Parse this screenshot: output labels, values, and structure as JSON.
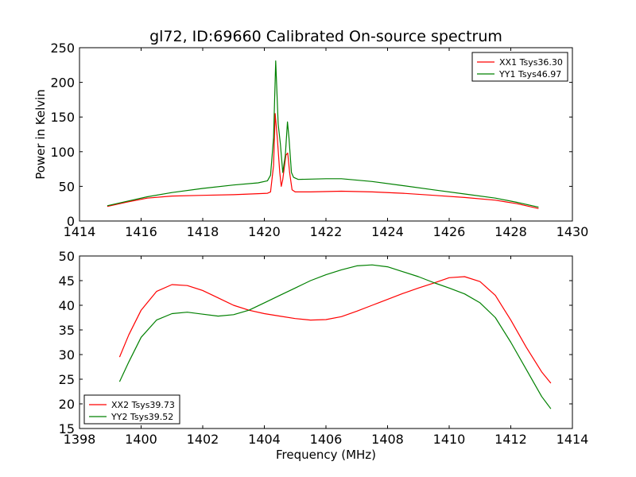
{
  "chart_data": [
    {
      "type": "line",
      "title": "gl72, ID:69660 Calibrated On-source spectrum",
      "xlabel": "",
      "ylabel": "Power in Kelvin",
      "xlim": [
        1414,
        1430
      ],
      "ylim": [
        0,
        250
      ],
      "xticks": [
        1414,
        1416,
        1418,
        1420,
        1422,
        1424,
        1426,
        1428,
        1430
      ],
      "yticks": [
        0,
        50,
        100,
        150,
        200,
        250
      ],
      "legend_position": "top-right",
      "series": [
        {
          "name": "XX1 Tsys36.30",
          "color": "#ff0000",
          "x": [
            1414.9,
            1415.5,
            1416.2,
            1417,
            1418,
            1419,
            1419.8,
            1420.1,
            1420.2,
            1420.3,
            1420.35,
            1420.42,
            1420.5,
            1420.55,
            1420.6,
            1420.7,
            1420.76,
            1420.82,
            1420.9,
            1421.0,
            1421.5,
            1422.5,
            1423.5,
            1424.5,
            1425.5,
            1426.5,
            1427.5,
            1428.2,
            1428.9
          ],
          "y": [
            21,
            27,
            33,
            36,
            37,
            38,
            39.5,
            40,
            42,
            80,
            155,
            120,
            70,
            50,
            60,
            95,
            98,
            70,
            45,
            42,
            42,
            43,
            42,
            40,
            37,
            34,
            30,
            25,
            18
          ]
        },
        {
          "name": "YY1 Tsys46.97",
          "color": "#008000",
          "x": [
            1414.9,
            1415.5,
            1416.2,
            1417,
            1418,
            1419,
            1419.8,
            1420.1,
            1420.2,
            1420.3,
            1420.37,
            1420.45,
            1420.52,
            1420.6,
            1420.68,
            1420.75,
            1420.8,
            1420.88,
            1420.95,
            1421.1,
            1422,
            1422.5,
            1423.5,
            1424.5,
            1425.5,
            1426.5,
            1427.5,
            1428.2,
            1428.9
          ],
          "y": [
            22,
            28,
            35,
            41,
            47,
            52,
            55,
            58,
            66,
            120,
            231,
            140,
            112,
            70,
            95,
            143,
            120,
            70,
            63,
            60,
            61,
            61,
            57,
            51,
            45,
            39,
            33,
            27,
            20
          ]
        }
      ]
    },
    {
      "type": "line",
      "title": "",
      "xlabel": "Frequency (MHz)",
      "ylabel": "",
      "xlim": [
        1398,
        1414
      ],
      "ylim": [
        15,
        50
      ],
      "xticks": [
        1398,
        1400,
        1402,
        1404,
        1406,
        1408,
        1410,
        1412,
        1414
      ],
      "yticks": [
        15,
        20,
        25,
        30,
        35,
        40,
        45,
        50
      ],
      "legend_position": "bottom-left",
      "series": [
        {
          "name": "XX2 Tsys39.73",
          "color": "#ff0000",
          "x": [
            1399.3,
            1399.6,
            1400,
            1400.5,
            1401,
            1401.5,
            1402,
            1402.5,
            1403,
            1403.5,
            1404,
            1404.5,
            1405,
            1405.5,
            1406,
            1406.5,
            1407,
            1407.5,
            1408,
            1408.5,
            1409,
            1409.5,
            1410,
            1410.5,
            1411,
            1411.5,
            1412,
            1412.5,
            1413,
            1413.3
          ],
          "y": [
            29.5,
            34,
            39,
            42.8,
            44.2,
            44,
            43,
            41.5,
            40,
            39,
            38.3,
            37.8,
            37.3,
            37,
            37.1,
            37.7,
            38.8,
            40,
            41.2,
            42.4,
            43.5,
            44.5,
            45.6,
            45.8,
            44.8,
            42,
            37,
            31.5,
            26.5,
            24.2
          ]
        },
        {
          "name": "YY2 Tsys39.52",
          "color": "#008000",
          "x": [
            1399.3,
            1399.6,
            1400,
            1400.5,
            1401,
            1401.5,
            1402,
            1402.5,
            1403,
            1403.5,
            1404,
            1404.5,
            1405,
            1405.5,
            1406,
            1406.5,
            1407,
            1407.5,
            1408,
            1408.5,
            1409,
            1409.5,
            1410,
            1410.5,
            1411,
            1411.5,
            1412,
            1412.5,
            1413,
            1413.3
          ],
          "y": [
            24.5,
            28.5,
            33.5,
            37,
            38.3,
            38.6,
            38.2,
            37.8,
            38.1,
            39,
            40.5,
            42,
            43.5,
            45,
            46.2,
            47.2,
            48,
            48.2,
            47.8,
            46.8,
            45.8,
            44.6,
            43.5,
            42.3,
            40.5,
            37.5,
            32.5,
            27,
            21.5,
            19
          ]
        }
      ]
    }
  ]
}
